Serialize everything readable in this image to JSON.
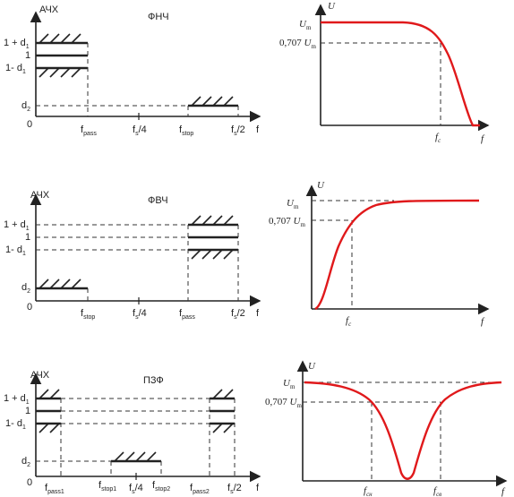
{
  "lpf": {
    "ylabel": "АЧХ",
    "title": "ФНЧ",
    "y_ticks": {
      "upper": "1 + d",
      "upper_sub": "1",
      "one": "1",
      "lower": "1- d",
      "lower_sub": "1",
      "d2": "d",
      "d2_sub": "2",
      "zero": "0"
    },
    "x_ticks": {
      "f1": "f",
      "f1_sub": "pass",
      "f2": "f",
      "f2_sub": "s",
      "f2_suffix": "/4",
      "f3": "f",
      "f3_sub": "stop",
      "f4": "f",
      "f4_sub": "s",
      "f4_suffix": "/2"
    },
    "xaxis": "f"
  },
  "hpf": {
    "ylabel": "АЧХ",
    "title": "ФВЧ",
    "y_ticks": {
      "upper": "1 + d",
      "upper_sub": "1",
      "one": "1",
      "lower": "1- d",
      "lower_sub": "1",
      "d2": "d",
      "d2_sub": "2",
      "zero": "0"
    },
    "x_ticks": {
      "f1": "f",
      "f1_sub": "stop",
      "f2": "f",
      "f2_sub": "s",
      "f2_suffix": "/4",
      "f3": "f",
      "f3_sub": "pass",
      "f4": "f",
      "f4_sub": "s",
      "f4_suffix": "/2"
    },
    "xaxis": "f"
  },
  "bsf": {
    "ylabel": "АЧХ",
    "title": "ПЗФ",
    "y_ticks": {
      "upper": "1 + d",
      "upper_sub": "1",
      "one": "1",
      "lower": "1- d",
      "lower_sub": "1",
      "d2": "d",
      "d2_sub": "2",
      "zero": "0"
    },
    "x_ticks": {
      "f1": "f",
      "f1_sub": "pass1",
      "f2": "f",
      "f2_sub": "stop1",
      "f3": "f",
      "f3_sub": "s",
      "f3_suffix": "/4",
      "f4": "f",
      "f4_sub": "stop2",
      "f5": "f",
      "f5_sub": "pass2",
      "f6": "f",
      "f6_sub": "s",
      "f6_suffix": "/2"
    },
    "xaxis": "f"
  },
  "resp_lpf": {
    "U": "U",
    "Um": "U",
    "Um_sub": "m",
    "u707": "0,707 ",
    "u707_U": "U",
    "u707_sub": "m",
    "fc": "f",
    "fc_sub": "c",
    "f": "f"
  },
  "resp_hpf": {
    "U": "U",
    "Um": "U",
    "Um_sub": "m",
    "u707": "0,707 ",
    "u707_U": "U",
    "u707_sub": "m",
    "fc": "f",
    "fc_sub": "c",
    "f": "f"
  },
  "resp_bsf": {
    "U": "U",
    "Um": "U",
    "Um_sub": "m",
    "u707": "0,707 ",
    "u707_U": "U",
    "u707_sub": "m",
    "fcn": "f",
    "fcn_sub": "сн",
    "fcv": "f",
    "fcv_sub": "св",
    "f": "f"
  },
  "colors": {
    "response_curve": "#e0191b",
    "lines": "#222222"
  }
}
